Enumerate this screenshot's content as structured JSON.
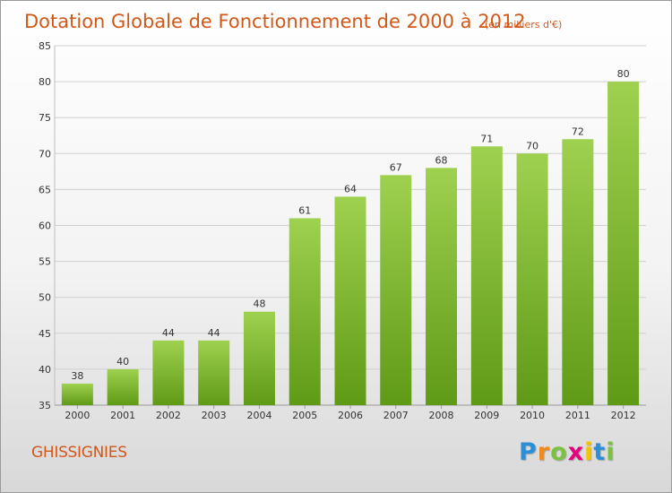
{
  "chart_data": {
    "type": "bar",
    "title": "Dotation Globale de Fonctionnement de 2000 à 2012",
    "subtitle": "(en milliers d'€)",
    "categories": [
      "2000",
      "2001",
      "2002",
      "2003",
      "2004",
      "2005",
      "2006",
      "2007",
      "2008",
      "2009",
      "2010",
      "2011",
      "2012"
    ],
    "values": [
      38,
      40,
      44,
      44,
      48,
      61,
      64,
      67,
      68,
      71,
      70,
      72,
      80
    ],
    "ylim": [
      35,
      85
    ],
    "yticks": [
      35,
      40,
      45,
      50,
      55,
      60,
      65,
      70,
      75,
      80,
      85
    ],
    "grid": true,
    "bar_color": "#7ab828",
    "title_color": "#d2581a"
  },
  "footer": {
    "commune": "GHISSIGNIES",
    "logo": {
      "letters": [
        "P",
        "r",
        "o",
        "x",
        "i",
        "t",
        "i"
      ],
      "colors": [
        "#2a8fd6",
        "#f08a1c",
        "#7cc242",
        "#e5007e",
        "#f5c400",
        "#2a8fd6",
        "#7cc242"
      ]
    }
  }
}
